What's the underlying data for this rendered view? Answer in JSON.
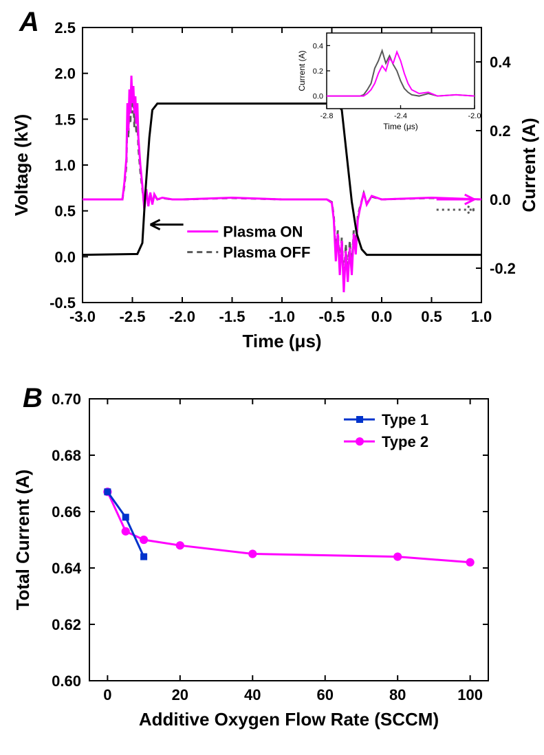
{
  "panelA": {
    "label": "A",
    "label_fontsize": 40,
    "label_fontweight": "bold",
    "label_color": "#000000",
    "xlabel": "Time (μs)",
    "ylabel_left": "Voltage (kV)",
    "ylabel_right": "Current (A)",
    "label_fontsize_axis": 26,
    "tick_fontsize": 22,
    "plot_bg": "#ffffff",
    "axis_color": "#000000",
    "axis_width": 2,
    "xlim": [
      -3.0,
      1.0
    ],
    "ylim_left": [
      -0.5,
      2.5
    ],
    "ylim_right": [
      -0.3,
      0.5
    ],
    "xticks": [
      -3.0,
      -2.5,
      -2.0,
      -1.5,
      -1.0,
      -0.5,
      0.0,
      0.5,
      1.0
    ],
    "yticks_left": [
      -0.5,
      0.0,
      0.5,
      1.0,
      1.5,
      2.0,
      2.5
    ],
    "yticks_right": [
      -0.2,
      0.0,
      0.2,
      0.4
    ],
    "legend": {
      "items": [
        {
          "label": "Plasma ON",
          "color": "#ff00ff",
          "dash": null,
          "width": 3
        },
        {
          "label": "Plasma OFF",
          "color": "#595959",
          "dash": "8,6",
          "width": 3
        }
      ],
      "fontsize": 22,
      "fontweight": "bold"
    },
    "arrows": {
      "left_arrow_color": "#000000",
      "right_arrow_solid_color": "#ff00ff",
      "right_arrow_dotted_color": "#595959"
    },
    "voltage": {
      "color": "#000000",
      "width": 3,
      "dash": null,
      "t": [
        -3.0,
        -2.45,
        -2.4,
        -2.37,
        -2.33,
        -2.3,
        -2.25,
        -0.45,
        -0.4,
        -0.35,
        -0.3,
        -0.25,
        -0.2,
        -0.15,
        1.0
      ],
      "v": [
        0.02,
        0.03,
        0.15,
        0.7,
        1.3,
        1.6,
        1.67,
        1.67,
        1.6,
        1.1,
        0.6,
        0.25,
        0.08,
        0.02,
        0.02
      ]
    },
    "current_on": {
      "color": "#ff00ff",
      "width": 3,
      "dash": null,
      "t": [
        -3.0,
        -2.6,
        -2.58,
        -2.56,
        -2.55,
        -2.54,
        -2.53,
        -2.52,
        -2.51,
        -2.5,
        -2.49,
        -2.48,
        -2.47,
        -2.46,
        -2.45,
        -2.44,
        -2.42,
        -2.4,
        -2.38,
        -2.36,
        -2.34,
        -2.32,
        -2.3,
        -2.28,
        -2.25,
        -2.2,
        -2.1,
        -2.0,
        -1.5,
        -1.0,
        -0.55,
        -0.5,
        -0.48,
        -0.46,
        -0.44,
        -0.42,
        -0.4,
        -0.38,
        -0.36,
        -0.34,
        -0.32,
        -0.3,
        -0.28,
        -0.26,
        -0.24,
        -0.22,
        -0.18,
        -0.15,
        -0.1,
        0.0,
        0.5,
        1.0
      ],
      "i": [
        0.0,
        0.0,
        0.05,
        0.12,
        0.28,
        0.2,
        0.32,
        0.25,
        0.36,
        0.28,
        0.33,
        0.25,
        0.3,
        0.22,
        0.28,
        0.18,
        0.1,
        0.04,
        -0.03,
        0.03,
        -0.02,
        0.02,
        -0.015,
        0.015,
        0.0,
        0.005,
        0.0,
        0.0,
        0.005,
        0.0,
        0.0,
        -0.01,
        -0.06,
        -0.18,
        -0.1,
        -0.22,
        -0.12,
        -0.27,
        -0.15,
        -0.24,
        -0.14,
        -0.22,
        -0.1,
        -0.16,
        -0.06,
        -0.03,
        0.02,
        -0.015,
        0.01,
        0.0,
        0.005,
        0.0
      ]
    },
    "current_off": {
      "color": "#595959",
      "width": 3,
      "dash": "8,6",
      "t": [
        -3.0,
        -2.6,
        -2.58,
        -2.56,
        -2.55,
        -2.54,
        -2.53,
        -2.52,
        -2.51,
        -2.5,
        -2.49,
        -2.48,
        -2.47,
        -2.46,
        -2.45,
        -2.44,
        -2.42,
        -2.4,
        -2.38,
        -2.36,
        -2.34,
        -2.32,
        -2.3,
        -2.28,
        -2.25,
        -2.2,
        -2.1,
        -2.0,
        -1.5,
        -1.0,
        -0.55,
        -0.5,
        -0.48,
        -0.46,
        -0.44,
        -0.42,
        -0.4,
        -0.38,
        -0.36,
        -0.34,
        -0.32,
        -0.3,
        -0.28,
        -0.26,
        -0.24,
        -0.22,
        -0.18,
        -0.15,
        -0.1,
        0.0,
        0.5,
        1.0
      ],
      "i": [
        0.0,
        0.0,
        0.04,
        0.1,
        0.25,
        0.18,
        0.3,
        0.22,
        0.34,
        0.25,
        0.29,
        0.21,
        0.26,
        0.19,
        0.24,
        0.15,
        0.08,
        0.03,
        -0.025,
        0.025,
        -0.018,
        0.018,
        -0.012,
        0.012,
        0.0,
        0.004,
        0.0,
        0.0,
        0.004,
        0.0,
        0.0,
        -0.008,
        -0.05,
        -0.16,
        -0.09,
        -0.2,
        -0.11,
        -0.25,
        -0.13,
        -0.22,
        -0.12,
        -0.2,
        -0.09,
        -0.14,
        -0.05,
        -0.025,
        0.018,
        -0.012,
        0.008,
        0.0,
        0.004,
        0.0
      ]
    },
    "inset": {
      "xlabel": "Time (μs)",
      "ylabel": "Current (A)",
      "label_fontsize": 12,
      "tick_fontsize": 11,
      "xlim": [
        -2.8,
        -2.0
      ],
      "ylim": [
        -0.1,
        0.5
      ],
      "xticks": [
        -2.8,
        -2.4,
        -2.0
      ],
      "yticks": [
        0.0,
        0.2,
        0.4
      ],
      "axis_color": "#000000",
      "series_on": {
        "color": "#ff00ff",
        "width": 2,
        "t": [
          -2.8,
          -2.6,
          -2.58,
          -2.56,
          -2.54,
          -2.52,
          -2.5,
          -2.48,
          -2.46,
          -2.44,
          -2.42,
          -2.4,
          -2.38,
          -2.36,
          -2.34,
          -2.3,
          -2.25,
          -2.2,
          -2.1,
          -2.0
        ],
        "i": [
          0.0,
          0.0,
          0.02,
          0.05,
          0.1,
          0.18,
          0.24,
          0.2,
          0.3,
          0.26,
          0.35,
          0.28,
          0.18,
          0.1,
          0.05,
          0.02,
          0.03,
          0.0,
          0.01,
          0.0
        ]
      },
      "series_off": {
        "color": "#595959",
        "width": 2,
        "t": [
          -2.8,
          -2.62,
          -2.6,
          -2.58,
          -2.56,
          -2.54,
          -2.52,
          -2.5,
          -2.48,
          -2.46,
          -2.44,
          -2.42,
          -2.4,
          -2.38,
          -2.36,
          -2.34,
          -2.3,
          -2.25,
          -2.2,
          -2.1,
          -2.0
        ],
        "i": [
          0.0,
          0.0,
          0.01,
          0.05,
          0.1,
          0.22,
          0.28,
          0.36,
          0.26,
          0.32,
          0.25,
          0.2,
          0.12,
          0.06,
          0.03,
          0.01,
          0.0,
          0.02,
          0.0,
          0.01,
          0.0
        ]
      }
    }
  },
  "panelB": {
    "label": "B",
    "label_fontsize": 40,
    "label_fontweight": "bold",
    "label_color": "#000000",
    "xlabel": "Additive Oxygen Flow Rate (SCCM)",
    "ylabel": "Total Current (A)",
    "label_fontsize_axis": 26,
    "tick_fontsize": 22,
    "plot_bg": "#ffffff",
    "axis_color": "#000000",
    "axis_width": 2,
    "xlim": [
      -5,
      105
    ],
    "ylim": [
      0.6,
      0.7
    ],
    "xticks": [
      0,
      20,
      40,
      60,
      80,
      100
    ],
    "yticks": [
      0.6,
      0.62,
      0.64,
      0.66,
      0.68,
      0.7
    ],
    "legend": {
      "items": [
        {
          "label": "Type 1",
          "color": "#0033cc",
          "marker": "square",
          "width": 3
        },
        {
          "label": "Type 2",
          "color": "#ff00ff",
          "marker": "circle",
          "width": 3
        }
      ],
      "fontsize": 22,
      "fontweight": "bold"
    },
    "series1": {
      "color": "#0033cc",
      "width": 3,
      "marker": "square",
      "marker_size": 9,
      "x": [
        0,
        5,
        10
      ],
      "y": [
        0.667,
        0.658,
        0.644
      ]
    },
    "series2": {
      "color": "#ff00ff",
      "width": 3,
      "marker": "circle",
      "marker_size": 9,
      "x": [
        0,
        5,
        10,
        20,
        40,
        80,
        100
      ],
      "y": [
        0.667,
        0.653,
        0.65,
        0.648,
        0.645,
        0.644,
        0.642
      ]
    }
  }
}
